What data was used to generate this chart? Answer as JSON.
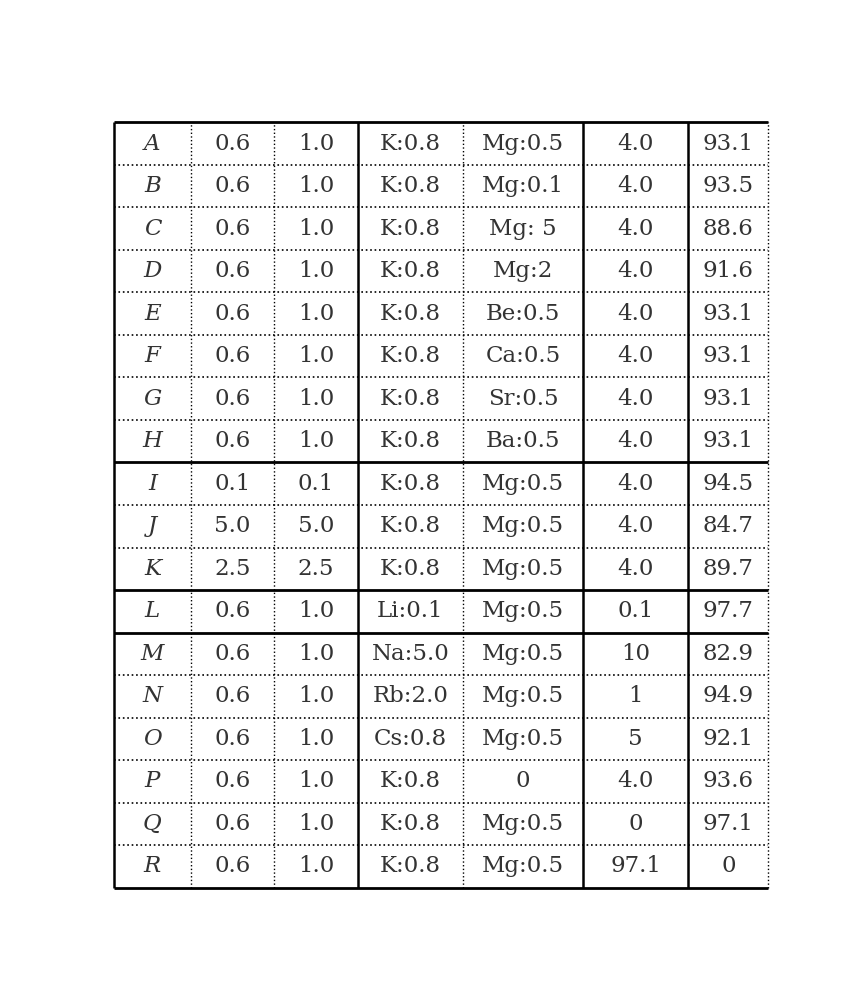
{
  "rows": [
    [
      "A",
      "0.6",
      "1.0",
      "K:0.8",
      "Mg:0.5",
      "4.0",
      "93.1"
    ],
    [
      "B",
      "0.6",
      "1.0",
      "K:0.8",
      "Mg:0.1",
      "4.0",
      "93.5"
    ],
    [
      "C",
      "0.6",
      "1.0",
      "K:0.8",
      "Mg: 5",
      "4.0",
      "88.6"
    ],
    [
      "D",
      "0.6",
      "1.0",
      "K:0.8",
      "Mg:2",
      "4.0",
      "91.6"
    ],
    [
      "E",
      "0.6",
      "1.0",
      "K:0.8",
      "Be:0.5",
      "4.0",
      "93.1"
    ],
    [
      "F",
      "0.6",
      "1.0",
      "K:0.8",
      "Ca:0.5",
      "4.0",
      "93.1"
    ],
    [
      "G",
      "0.6",
      "1.0",
      "K:0.8",
      "Sr:0.5",
      "4.0",
      "93.1"
    ],
    [
      "H",
      "0.6",
      "1.0",
      "K:0.8",
      "Ba:0.5",
      "4.0",
      "93.1"
    ],
    [
      "I",
      "0.1",
      "0.1",
      "K:0.8",
      "Mg:0.5",
      "4.0",
      "94.5"
    ],
    [
      "J",
      "5.0",
      "5.0",
      "K:0.8",
      "Mg:0.5",
      "4.0",
      "84.7"
    ],
    [
      "K",
      "2.5",
      "2.5",
      "K:0.8",
      "Mg:0.5",
      "4.0",
      "89.7"
    ],
    [
      "L",
      "0.6",
      "1.0",
      "Li:0.1",
      "Mg:0.5",
      "0.1",
      "97.7"
    ],
    [
      "M",
      "0.6",
      "1.0",
      "Na:5.0",
      "Mg:0.5",
      "10",
      "82.9"
    ],
    [
      "N",
      "0.6",
      "1.0",
      "Rb:2.0",
      "Mg:0.5",
      "1",
      "94.9"
    ],
    [
      "O",
      "0.6",
      "1.0",
      "Cs:0.8",
      "Mg:0.5",
      "5",
      "92.1"
    ],
    [
      "P",
      "0.6",
      "1.0",
      "K:0.8",
      "0",
      "4.0",
      "93.6"
    ],
    [
      "Q",
      "0.6",
      "1.0",
      "K:0.8",
      "Mg:0.5",
      "0",
      "97.1"
    ],
    [
      "R",
      "0.6",
      "1.0",
      "K:0.8",
      "Mg:0.5",
      "97.1",
      "0"
    ]
  ],
  "col_widths_rel": [
    1.05,
    1.15,
    1.15,
    1.45,
    1.65,
    1.45,
    1.1
  ],
  "background_color": "#ffffff",
  "border_color": "#000000",
  "text_color": "#333333",
  "font_size": 16.5,
  "thick_solid_after_rows": [
    7,
    10,
    11
  ],
  "thick_solid_cols": [
    0,
    3,
    5,
    6
  ],
  "dotted_row_lw": 1.2,
  "solid_row_lw": 2.0,
  "outer_lw": 2.0,
  "solid_col_lw": 1.8,
  "dotted_col_lw": 1.0
}
